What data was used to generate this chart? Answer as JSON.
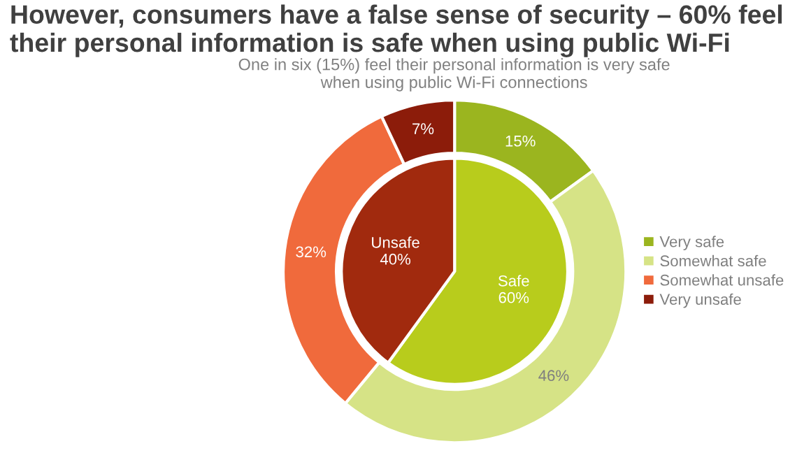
{
  "chart_data": {
    "type": "pie",
    "title": "However, consumers have a false sense of security – 60% feel\ntheir personal information is safe when using public Wi-Fi",
    "subtitle": "One in six (15%) feel their personal information is very safe\nwhen using public Wi-Fi connections",
    "legend": "right",
    "categories": [
      "Very safe",
      "Somewhat safe",
      "Somewhat unsafe",
      "Very unsafe"
    ],
    "series": [
      {
        "type": "donut",
        "values": [
          15,
          46,
          32,
          7
        ],
        "colors": [
          "#9bb51f",
          "#d6e386",
          "#f06a3c",
          "#8c1c0a"
        ],
        "value_labels": [
          "15%",
          "46%",
          "32%",
          "7%"
        ]
      },
      {
        "values": [
          60,
          null,
          40,
          null
        ],
        "colors": [
          "#b8cc1c",
          null,
          "#a12a0e",
          null
        ],
        "value_labels": [
          "Safe\n60%",
          null,
          "Unsafe\n40%",
          null
        ]
      }
    ]
  }
}
